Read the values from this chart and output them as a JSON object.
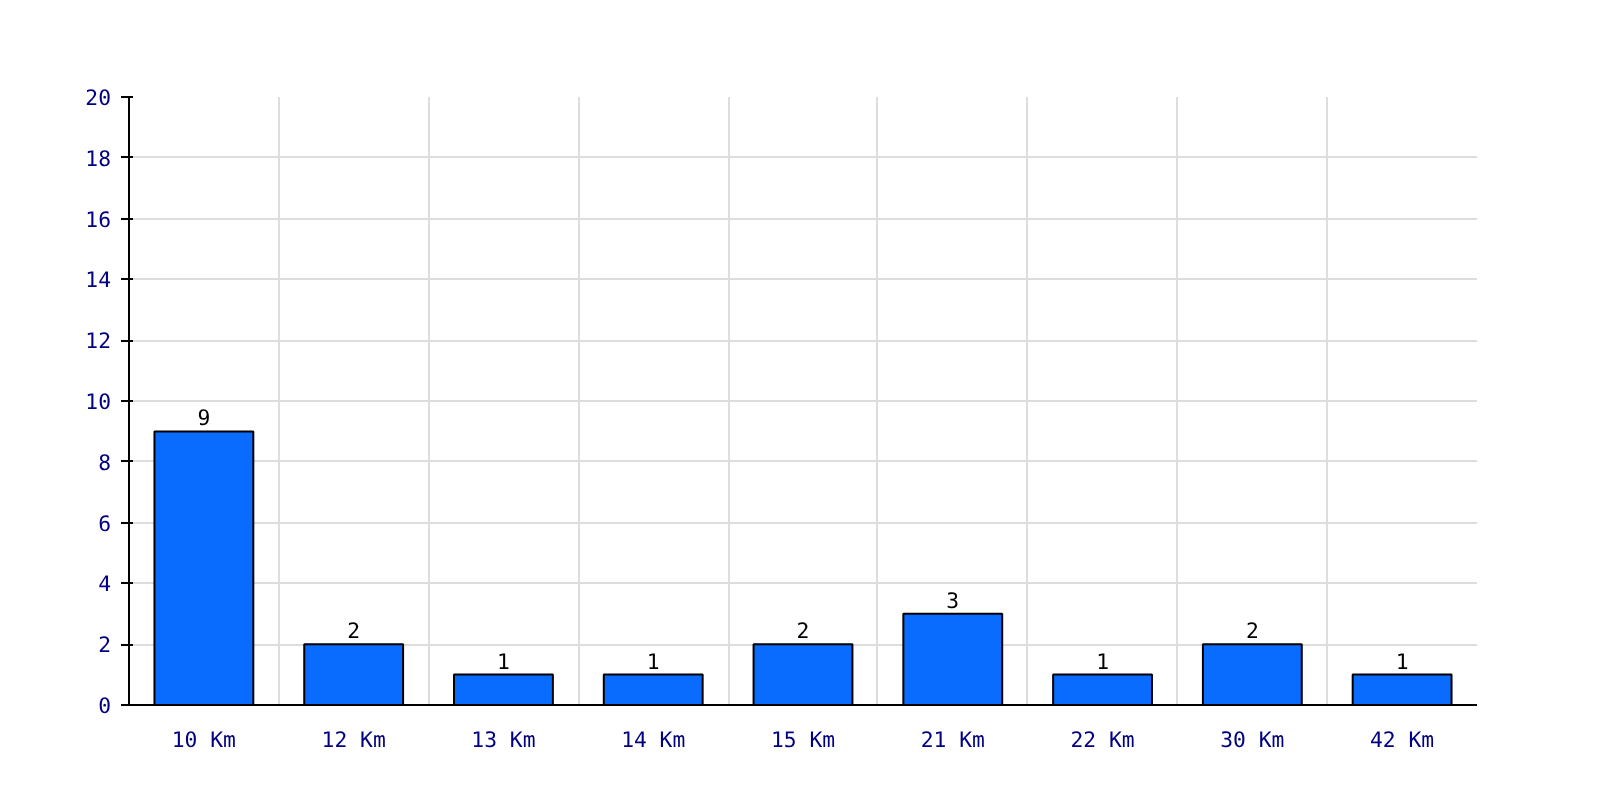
{
  "chart_data": {
    "type": "bar",
    "categories": [
      "10 Km",
      "12 Km",
      "13 Km",
      "14 Km",
      "15 Km",
      "21 Km",
      "22 Km",
      "30 Km",
      "42 Km"
    ],
    "values": [
      9,
      2,
      1,
      1,
      2,
      3,
      1,
      2,
      1
    ],
    "color": "#0a6cff",
    "ylim": [
      0,
      20
    ],
    "yticks": [
      0,
      2,
      4,
      6,
      8,
      10,
      12,
      14,
      16,
      18,
      20
    ],
    "grid": true,
    "data_labels": true
  }
}
